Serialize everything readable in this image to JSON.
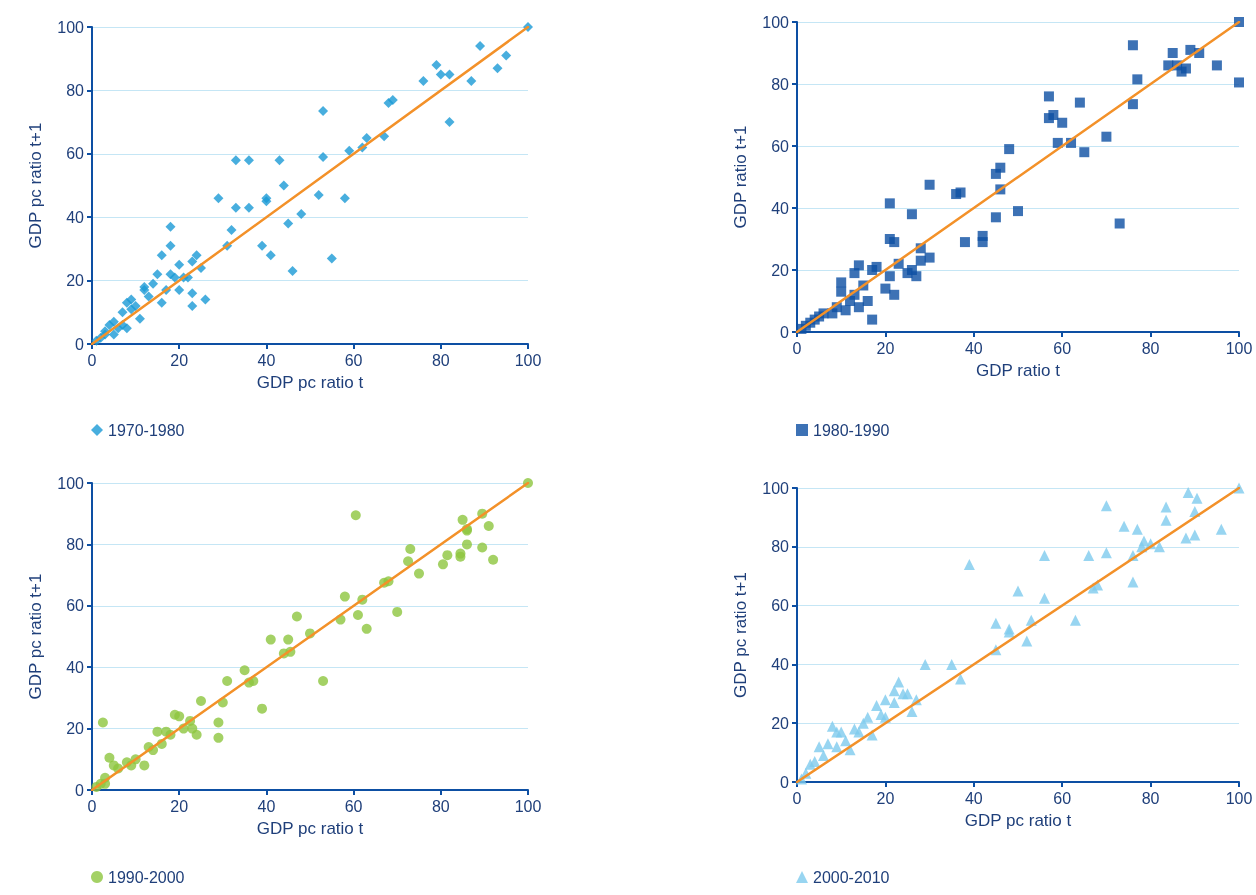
{
  "chart_data": [
    {
      "type": "scatter",
      "xlabel": "GDP pc ratio t",
      "ylabel": "GDP pc ratio t+1",
      "xlim": [
        0,
        100
      ],
      "ylim": [
        0,
        100
      ],
      "xticks": [
        0,
        20,
        40,
        60,
        80,
        100
      ],
      "yticks": [
        0,
        20,
        40,
        60,
        80,
        100
      ],
      "grid": "y",
      "legend": "bottom left",
      "series": [
        {
          "name": "1970-1980",
          "color": "#1a9ad6",
          "marker": "diamond",
          "x": [
            100,
            89,
            95,
            93,
            79,
            80,
            82,
            76,
            87,
            82,
            68,
            69,
            53,
            63,
            67,
            62,
            59,
            53,
            33,
            36,
            43,
            44,
            40,
            40,
            29,
            58,
            52,
            48,
            32,
            33,
            36,
            31,
            39,
            45,
            41,
            55,
            46,
            18,
            18,
            16,
            24,
            23,
            20,
            25,
            18,
            15,
            21,
            14,
            12,
            23,
            22,
            20,
            26,
            23,
            16,
            10,
            9,
            11,
            12,
            8,
            9,
            7,
            5,
            6,
            4,
            3,
            2,
            1,
            3,
            5,
            7,
            8,
            13,
            17,
            19
          ],
          "values": [
            100,
            94,
            91,
            87,
            88,
            85,
            85,
            83,
            83,
            70,
            76,
            77,
            73.5,
            65,
            65.5,
            62,
            61,
            59,
            58,
            58,
            58,
            50,
            45,
            46,
            46,
            46,
            47,
            41,
            36,
            43,
            43,
            31,
            31,
            38,
            28,
            27,
            23,
            37,
            31,
            28,
            28,
            26,
            25,
            24,
            22,
            22,
            21,
            19,
            18,
            16,
            21,
            17,
            14,
            12,
            13,
            12,
            11,
            8,
            17,
            13,
            14,
            10,
            7,
            5,
            6,
            4,
            2,
            1,
            3,
            3,
            6,
            5,
            15,
            17,
            21
          ]
        },
        {
          "type": "line",
          "color": "#f39129",
          "marker": "none",
          "x": [
            0,
            100
          ],
          "values": [
            0,
            100
          ]
        }
      ]
    },
    {
      "type": "scatter",
      "xlabel": "GDP ratio t",
      "ylabel": "GDP ratio t+1",
      "xlim": [
        0,
        100
      ],
      "ylim": [
        0,
        100
      ],
      "xticks": [
        0,
        20,
        40,
        60,
        80,
        100
      ],
      "yticks": [
        0,
        20,
        40,
        60,
        80,
        100
      ],
      "grid": "y",
      "legend": "bottom left",
      "series": [
        {
          "name": "1980-1990",
          "color": "#0d4fa3",
          "marker": "square",
          "x": [
            100,
            100,
            76,
            85,
            89,
            91,
            84,
            86,
            88,
            87,
            95,
            77,
            76,
            57,
            57,
            58,
            60,
            64,
            59,
            62,
            65,
            70,
            73,
            48,
            46,
            45,
            46,
            45,
            50,
            42,
            42,
            38,
            36,
            37,
            30,
            21,
            21,
            22,
            26,
            28,
            30,
            28,
            26,
            25,
            23,
            21,
            18,
            17,
            14,
            13,
            10,
            10,
            13,
            16,
            17,
            14,
            9,
            11,
            8,
            6,
            5,
            4,
            3,
            2,
            1,
            20,
            22,
            27,
            15,
            12
          ],
          "values": [
            100,
            80.5,
            92.5,
            90,
            91,
            90,
            86,
            86,
            85,
            84,
            86,
            81.5,
            73.5,
            76,
            69,
            70,
            67.5,
            74,
            61,
            61,
            58,
            63,
            35,
            59,
            53,
            51,
            46,
            37,
            39,
            31,
            29,
            29,
            44.5,
            45,
            47.5,
            41.5,
            30,
            29,
            38,
            27,
            24,
            23,
            20,
            19,
            22,
            18,
            21,
            20,
            21.5,
            19,
            16,
            13,
            12,
            10,
            4,
            8,
            8,
            7,
            6,
            6,
            5,
            4,
            3,
            2,
            1,
            14,
            12,
            18,
            15,
            10
          ]
        },
        {
          "type": "line",
          "color": "#f39129",
          "marker": "none",
          "x": [
            0,
            100
          ],
          "values": [
            0,
            100
          ]
        }
      ]
    },
    {
      "type": "scatter",
      "xlabel": "GDP pc ratio t",
      "ylabel": "GDP pc ratio t+1",
      "xlim": [
        0,
        100
      ],
      "ylim": [
        0,
        100
      ],
      "xticks": [
        0,
        20,
        40,
        60,
        80,
        100
      ],
      "yticks": [
        0,
        20,
        40,
        60,
        80,
        100
      ],
      "grid": "y",
      "legend": "bottom left",
      "series": [
        {
          "name": "1990-2000",
          "color": "#8dc63f",
          "marker": "circle",
          "x": [
            100,
            60.5,
            85,
            89.5,
            86,
            86,
            91,
            86,
            89.5,
            92,
            80.5,
            81.5,
            84.5,
            84.5,
            73,
            72.5,
            75,
            67,
            68,
            58,
            62,
            61,
            63,
            70,
            57,
            47,
            45,
            41,
            45.5,
            44,
            50,
            35,
            31,
            36,
            37,
            53,
            39,
            25,
            30,
            29,
            29,
            24,
            22.5,
            20,
            19,
            23,
            2.5,
            15,
            17,
            13,
            10,
            12,
            8,
            5,
            4,
            6,
            3,
            2,
            1,
            3,
            18,
            21,
            9,
            14,
            16
          ],
          "values": [
            100,
            89.5,
            88,
            90,
            85,
            84.5,
            86,
            80,
            79,
            75,
            73.5,
            76.5,
            76,
            77,
            78.5,
            74.5,
            70.5,
            67.5,
            68,
            63,
            62,
            57,
            52.5,
            58,
            55.5,
            56.5,
            49,
            49,
            45,
            44.5,
            51,
            39,
            35.5,
            35,
            35.5,
            35.5,
            26.5,
            29,
            28.5,
            22,
            17,
            18,
            22.5,
            24,
            24.5,
            20,
            22,
            19,
            19,
            14,
            10,
            8,
            9,
            8,
            10.5,
            7,
            4,
            2,
            1,
            2,
            18,
            20,
            8,
            13,
            15
          ]
        },
        {
          "type": "line",
          "color": "#f39129",
          "marker": "none",
          "x": [
            0,
            100
          ],
          "values": [
            0,
            100
          ]
        }
      ]
    },
    {
      "type": "scatter",
      "xlabel": "GDP pc ratio t",
      "ylabel": "GDP pc ratio t+1",
      "xlim": [
        0,
        100
      ],
      "ylim": [
        0,
        100
      ],
      "xticks": [
        0,
        20,
        40,
        60,
        80,
        100
      ],
      "yticks": [
        0,
        20,
        40,
        60,
        80,
        100
      ],
      "grid": "y",
      "legend": "bottom left",
      "series": [
        {
          "name": "2000-2010",
          "color": "#7ecbee",
          "marker": "triangle",
          "x": [
            100,
            88.5,
            90.5,
            70,
            83.5,
            90,
            83.5,
            96,
            90,
            74,
            77,
            78.5,
            80,
            82,
            78,
            88,
            76,
            70,
            66,
            56,
            39,
            67,
            68,
            76,
            63,
            50,
            53,
            48,
            56,
            45,
            45,
            37,
            52,
            48,
            35,
            29,
            23,
            22,
            20,
            24,
            22,
            26,
            27,
            18,
            19,
            16,
            17,
            15,
            14,
            13,
            10,
            9,
            8,
            7,
            9,
            5,
            6,
            4,
            3,
            2,
            1,
            11,
            12,
            20,
            25
          ],
          "values": [
            100,
            98.5,
            96.5,
            94,
            93.5,
            92,
            89,
            86,
            84,
            87,
            86,
            82,
            81,
            80,
            80,
            83,
            77,
            78,
            77,
            77,
            74,
            66,
            67,
            68,
            55,
            65,
            55,
            52,
            62.5,
            54,
            45,
            35,
            48,
            51,
            40,
            40,
            34,
            31,
            28,
            30,
            27,
            24,
            28,
            26,
            23,
            22,
            16,
            20,
            17,
            18,
            17,
            17,
            19,
            13,
            12,
            12,
            9,
            7,
            6,
            3,
            1,
            14,
            11,
            22,
            30
          ]
        },
        {
          "type": "line",
          "color": "#f39129",
          "marker": "none",
          "x": [
            0,
            100
          ],
          "values": [
            0,
            100
          ]
        }
      ]
    }
  ]
}
